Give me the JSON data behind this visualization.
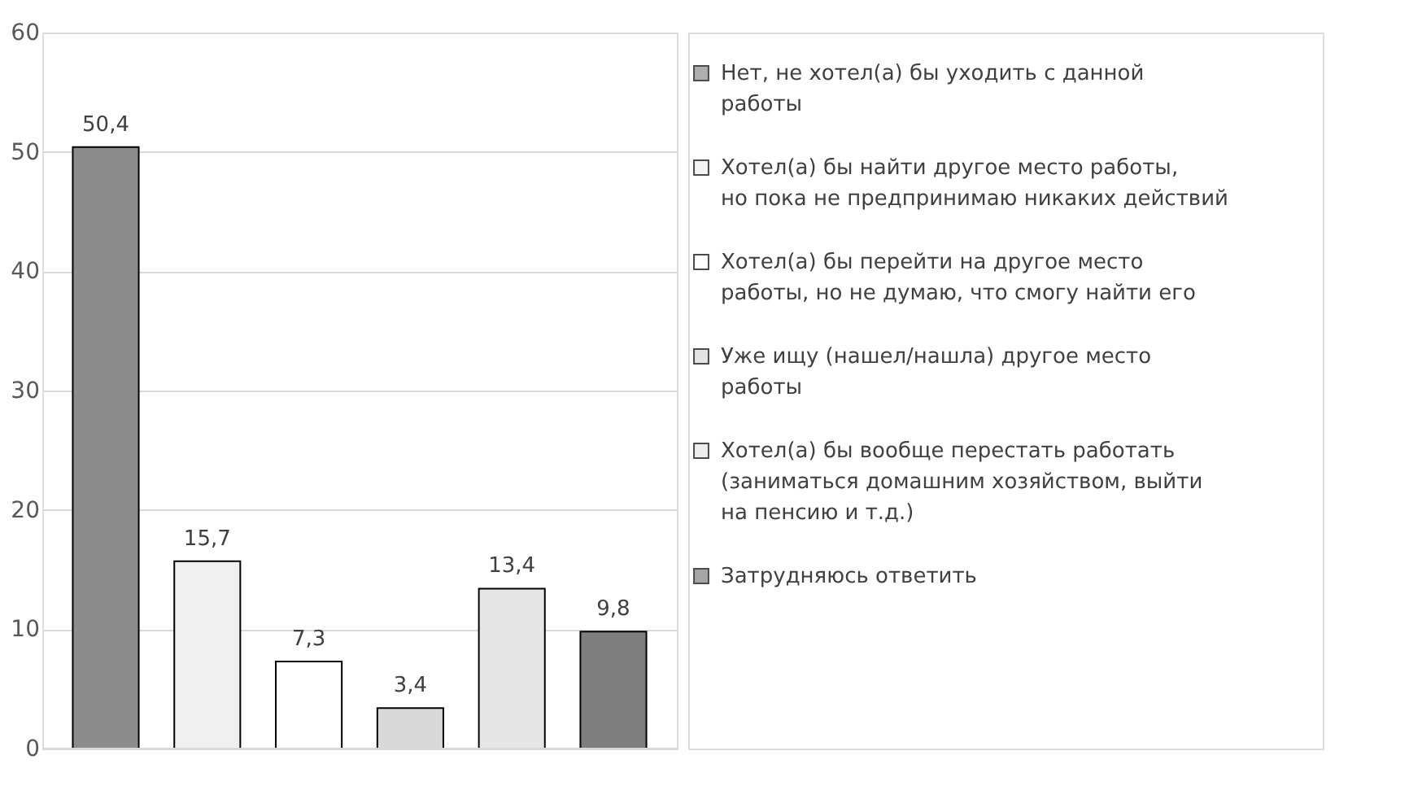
{
  "chart_data": {
    "type": "bar",
    "categories": [
      null
    ],
    "ylim": [
      0,
      60
    ],
    "yticks": [
      0,
      10,
      20,
      30,
      40,
      50,
      60
    ],
    "grid": "y",
    "legend": "right",
    "series": [
      {
        "name": "Нет, не хотел(а) бы уходить с данной работы",
        "color": "#8c8c8c",
        "values": [
          50.4
        ],
        "value_labels": [
          "50,4"
        ]
      },
      {
        "name": "Хотел(а) бы найти другое место работы, но пока не предпринимаю никаких действий",
        "color": "#f0f0f0",
        "values": [
          15.7
        ],
        "value_labels": [
          "15,7"
        ]
      },
      {
        "name": "Хотел(а) бы перейти на другое место работы, но не думаю, что смогу найти его",
        "color": "#ffffff",
        "values": [
          7.3
        ],
        "value_labels": [
          "7,3"
        ]
      },
      {
        "name": "Уже ищу (нашел/нашла) другое место работы",
        "color": "#d9d9d9",
        "values": [
          3.4
        ],
        "value_labels": [
          "3,4"
        ]
      },
      {
        "name": "Хотел(а) бы вообще перестать работать (заниматься домашним хозяйством, выйти на пенсию и т.д.)",
        "color": "#e6e6e6",
        "values": [
          13.4
        ],
        "value_labels": [
          "13,4"
        ]
      },
      {
        "name": "Затрудняюсь ответить",
        "color": "#7f7f7f",
        "values": [
          9.8
        ],
        "value_labels": [
          "9,8"
        ]
      }
    ]
  }
}
